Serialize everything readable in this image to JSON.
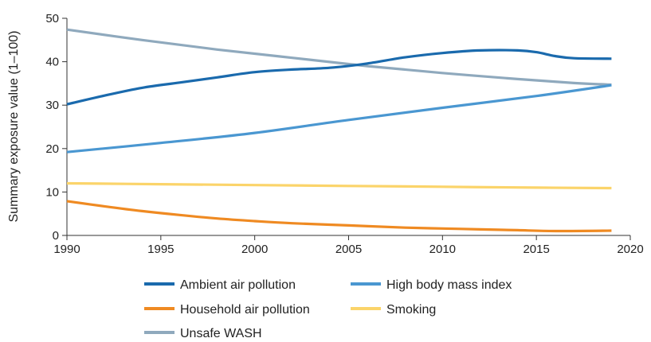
{
  "chart_data": {
    "type": "line",
    "title": "",
    "xlabel": "",
    "ylabel": "Summary exposure value (1–100)",
    "xlim": [
      1990,
      2020
    ],
    "ylim": [
      0,
      50
    ],
    "xticks": [
      1990,
      1995,
      2000,
      2005,
      2010,
      2015,
      2020
    ],
    "yticks": [
      0,
      10,
      20,
      30,
      40,
      50
    ],
    "grid": false,
    "legend_position": "bottom",
    "series": [
      {
        "name": "Ambient air pollution",
        "color": "#1a6aad",
        "x": [
          1990,
          1992,
          1994,
          1996,
          1998,
          2000,
          2002,
          2004,
          2006,
          2008,
          2010,
          2012,
          2014,
          2015,
          2016,
          2017,
          2019
        ],
        "y": [
          30.2,
          32.2,
          34.0,
          35.2,
          36.4,
          37.6,
          38.2,
          38.6,
          39.6,
          41.0,
          42.0,
          42.6,
          42.6,
          42.2,
          41.3,
          40.8,
          40.7
        ]
      },
      {
        "name": "High body mass index",
        "color": "#4a97d1",
        "x": [
          1990,
          1995,
          2000,
          2005,
          2010,
          2015,
          2019
        ],
        "y": [
          19.2,
          21.3,
          23.6,
          26.6,
          29.4,
          32.1,
          34.6
        ]
      },
      {
        "name": "Household air pollution",
        "color": "#ef8a22",
        "x": [
          1990,
          1992,
          1994,
          1996,
          1998,
          2000,
          2002,
          2005,
          2008,
          2010,
          2012,
          2014,
          2016,
          2019
        ],
        "y": [
          7.9,
          6.7,
          5.6,
          4.7,
          3.9,
          3.3,
          2.8,
          2.3,
          1.8,
          1.6,
          1.4,
          1.2,
          1.0,
          1.1
        ]
      },
      {
        "name": "Smoking",
        "color": "#fbd46a",
        "x": [
          1990,
          1995,
          2000,
          2005,
          2010,
          2015,
          2019
        ],
        "y": [
          12.0,
          11.8,
          11.6,
          11.4,
          11.2,
          11.0,
          10.9
        ]
      },
      {
        "name": "Unsafe WASH",
        "color": "#8fa9bd",
        "x": [
          1990,
          1994,
          1998,
          2002,
          2006,
          2010,
          2014,
          2017,
          2019
        ],
        "y": [
          47.4,
          45.0,
          42.8,
          40.9,
          39.0,
          37.4,
          36.0,
          35.1,
          34.7
        ]
      }
    ]
  }
}
